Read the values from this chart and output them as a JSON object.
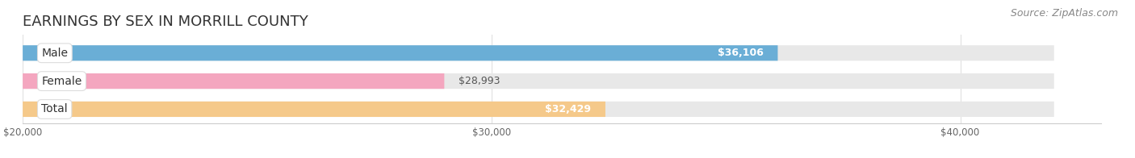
{
  "title": "EARNINGS BY SEX IN MORRILL COUNTY",
  "source": "Source: ZipAtlas.com",
  "categories": [
    "Male",
    "Female",
    "Total"
  ],
  "values": [
    36106,
    28993,
    32429
  ],
  "bar_colors": [
    "#6aaed6",
    "#f4a6bf",
    "#f5c98a"
  ],
  "value_labels": [
    "$36,106",
    "$28,993",
    "$32,429"
  ],
  "value_label_colors": [
    "white",
    "#555555",
    "white"
  ],
  "value_label_inside": [
    true,
    false,
    true
  ],
  "xmin": 20000,
  "xmax": 43000,
  "xticks": [
    20000,
    30000,
    40000
  ],
  "xtick_labels": [
    "$20,000",
    "$30,000",
    "$40,000"
  ],
  "background_color": "#ffffff",
  "bar_bg_color": "#e8e8e8",
  "title_fontsize": 13,
  "source_fontsize": 9,
  "label_fontsize": 10,
  "value_fontsize": 9
}
